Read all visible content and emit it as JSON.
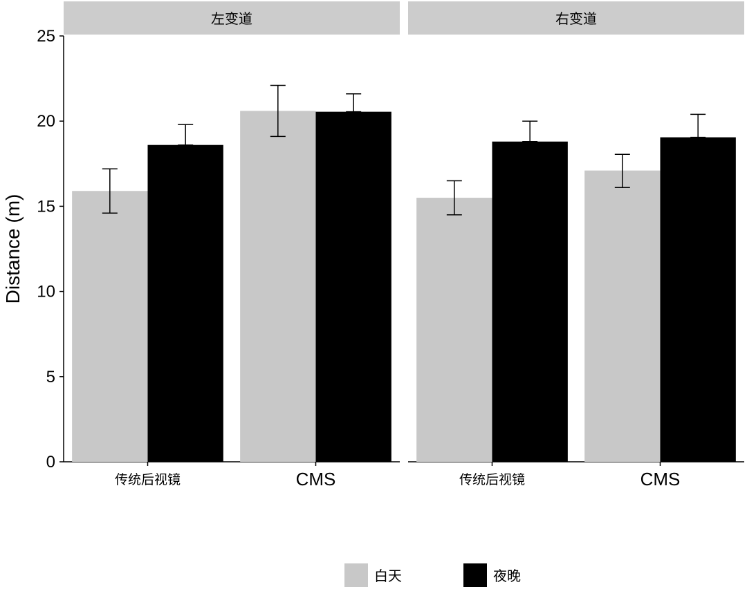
{
  "chart_data": {
    "type": "bar",
    "title": "",
    "ylabel": "Distance (m)",
    "xlabel": "",
    "ylim": [
      0,
      25
    ],
    "y_ticks": [
      "0",
      "5",
      "10",
      "15",
      "20",
      "25"
    ],
    "grid": false,
    "legend_position": "bottom",
    "categories": [
      "传统后视镜",
      "CMS"
    ],
    "panels": [
      {
        "label": "左变道",
        "series": [
          {
            "name": "白天",
            "color": "#c8c8c8",
            "values": [
              15.9,
              20.6
            ],
            "err_low": [
              14.6,
              19.1
            ],
            "err_high": [
              17.2,
              22.1
            ]
          },
          {
            "name": "夜晚",
            "color": "#000000",
            "values": [
              18.6,
              20.55
            ],
            "err_low": [
              18.6,
              20.55
            ],
            "err_high": [
              19.8,
              21.6
            ]
          }
        ]
      },
      {
        "label": "右变道",
        "series": [
          {
            "name": "白天",
            "color": "#c8c8c8",
            "values": [
              15.5,
              17.1
            ],
            "err_low": [
              14.5,
              16.1
            ],
            "err_high": [
              16.5,
              18.05
            ]
          },
          {
            "name": "夜晚",
            "color": "#000000",
            "values": [
              18.8,
              19.05
            ],
            "err_low": [
              18.8,
              19.05
            ],
            "err_high": [
              20.0,
              20.4
            ]
          }
        ]
      }
    ]
  },
  "legend": {
    "items": [
      {
        "label": "白天",
        "color": "#c8c8c8"
      },
      {
        "label": "夜晚",
        "color": "#000000"
      }
    ]
  }
}
